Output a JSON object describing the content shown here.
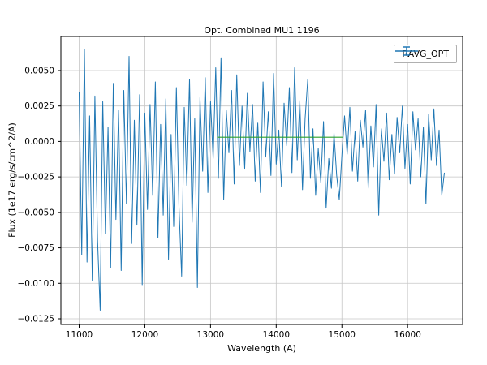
{
  "figure": {
    "background": "#ffffff",
    "axes_edge_color": "#000000",
    "grid_color": "#c6c6c6"
  },
  "chart_data": {
    "type": "line",
    "title": "Opt. Combined MU1 1196",
    "xlabel": "Wavelength (A)",
    "ylabel": "Flux (1e17 erg/s/cm^2/A)",
    "grid": true,
    "legend": {
      "position": "upper right",
      "entries": [
        {
          "label": "RAVG_OPT",
          "color": "#1f77b4",
          "marker": "errorbar"
        }
      ]
    },
    "xlim": [
      10722,
      16838
    ],
    "ylim": [
      -0.0129,
      0.0074
    ],
    "xticks": [
      11000,
      12000,
      13000,
      14000,
      15000,
      16000
    ],
    "xtick_labels": [
      "11000",
      "12000",
      "13000",
      "14000",
      "15000",
      "16000"
    ],
    "yticks": [
      0.005,
      0.0025,
      0.0,
      -0.0025,
      -0.005,
      -0.0075,
      -0.01,
      -0.0125
    ],
    "ytick_labels": [
      "0.0050",
      "0.0025",
      "0.0000",
      "−0.0025",
      "−0.0050",
      "−0.0075",
      "−0.0100",
      "−0.0125"
    ],
    "series": [
      {
        "name": "RAVG_OPT",
        "color": "#1f77b4",
        "x_start": 11000,
        "x_step": 40,
        "values": [
          0.0035,
          -0.008,
          0.0065,
          -0.0085,
          0.0018,
          -0.0098,
          0.0032,
          -0.007,
          -0.0119,
          0.0028,
          -0.0065,
          0.001,
          -0.0089,
          0.0041,
          -0.0055,
          0.0022,
          -0.0091,
          0.0036,
          -0.0044,
          0.006,
          -0.0072,
          0.0015,
          -0.0059,
          0.0033,
          -0.0101,
          0.002,
          -0.0048,
          0.0026,
          -0.0038,
          0.0042,
          -0.0068,
          0.0012,
          -0.0052,
          0.003,
          -0.0083,
          0.0005,
          -0.006,
          0.0038,
          -0.0046,
          -0.0095,
          0.0024,
          -0.0031,
          0.0044,
          -0.0057,
          0.0016,
          -0.0103,
          0.0031,
          -0.0021,
          0.0045,
          -0.0036,
          0.0028,
          -0.0012,
          0.0052,
          -0.0026,
          0.0059,
          -0.0041,
          0.0022,
          -0.0008,
          0.0036,
          -0.003,
          0.0047,
          -0.0017,
          0.0025,
          -0.0019,
          0.0034,
          -0.0007,
          0.0026,
          -0.0028,
          0.0013,
          -0.0036,
          0.0042,
          -0.0011,
          0.0021,
          -0.0024,
          0.0048,
          -0.0016,
          0.0008,
          -0.0032,
          0.0027,
          -0.0003,
          0.0038,
          -0.0022,
          0.0052,
          -0.0013,
          0.0029,
          -0.0034,
          0.0016,
          0.0044,
          -0.0026,
          0.0009,
          -0.0038,
          -0.0005,
          -0.0029,
          0.0014,
          -0.0047,
          -0.0012,
          -0.0033,
          0.0006,
          -0.0024,
          -0.0041,
          -0.001,
          0.0018,
          -0.0009,
          0.0024,
          -0.0021,
          0.0007,
          -0.0028,
          0.0015,
          -0.0004,
          0.0022,
          -0.0033,
          0.0011,
          -0.0018,
          0.0026,
          -0.0052,
          0.0009,
          -0.0014,
          0.002,
          -0.0027,
          0.0005,
          -0.0023,
          0.0017,
          -0.0008,
          0.0025,
          -0.0019,
          0.0012,
          -0.003,
          0.0021,
          -0.0006,
          0.0016,
          -0.0025,
          0.001,
          -0.0044,
          0.0019,
          -0.0013,
          0.0023,
          -0.0017,
          0.0008,
          -0.0038,
          -0.0022
        ]
      }
    ],
    "overlays": [
      {
        "type": "hline_segment",
        "x1": 13100,
        "x2": 15020,
        "y": 0.0003,
        "color": "#2ca02c"
      }
    ]
  }
}
